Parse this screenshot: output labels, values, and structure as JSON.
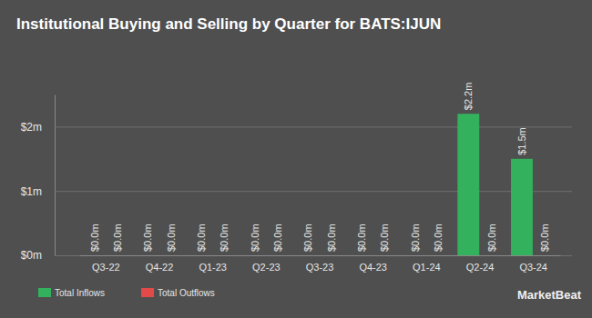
{
  "chart_data": {
    "type": "bar",
    "title": "Institutional Buying and Selling by Quarter for BATS:IJUN",
    "categories": [
      "Q3-22",
      "Q4-22",
      "Q1-23",
      "Q2-23",
      "Q3-23",
      "Q4-23",
      "Q1-24",
      "Q2-24",
      "Q3-24"
    ],
    "series": [
      {
        "name": "Total Inflows",
        "color": "#33b15c",
        "values": [
          0,
          0,
          0,
          0,
          0,
          0,
          0,
          2.2,
          1.5
        ],
        "value_labels": [
          "$0.0m",
          "$0.0m",
          "$0.0m",
          "$0.0m",
          "$0.0m",
          "$0.0m",
          "$0.0m",
          "$2.2m",
          "$1.5m"
        ]
      },
      {
        "name": "Total Outflows",
        "color": "#e24a4a",
        "values": [
          0,
          0,
          0,
          0,
          0,
          0,
          0,
          0,
          0
        ],
        "value_labels": [
          "$0.0m",
          "$0.0m",
          "$0.0m",
          "$0.0m",
          "$0.0m",
          "$0.0m",
          "$0.0m",
          "$0.0m",
          "$0.0m"
        ]
      }
    ],
    "ylim": [
      0,
      2.5
    ],
    "yticks": [
      {
        "value": 0,
        "label": "$0m"
      },
      {
        "value": 1,
        "label": "$1m"
      },
      {
        "value": 2,
        "label": "$2m"
      }
    ],
    "grid": true,
    "data_labels": true,
    "legend": "bottom-left",
    "annotations": [
      "MarketBeat"
    ]
  }
}
